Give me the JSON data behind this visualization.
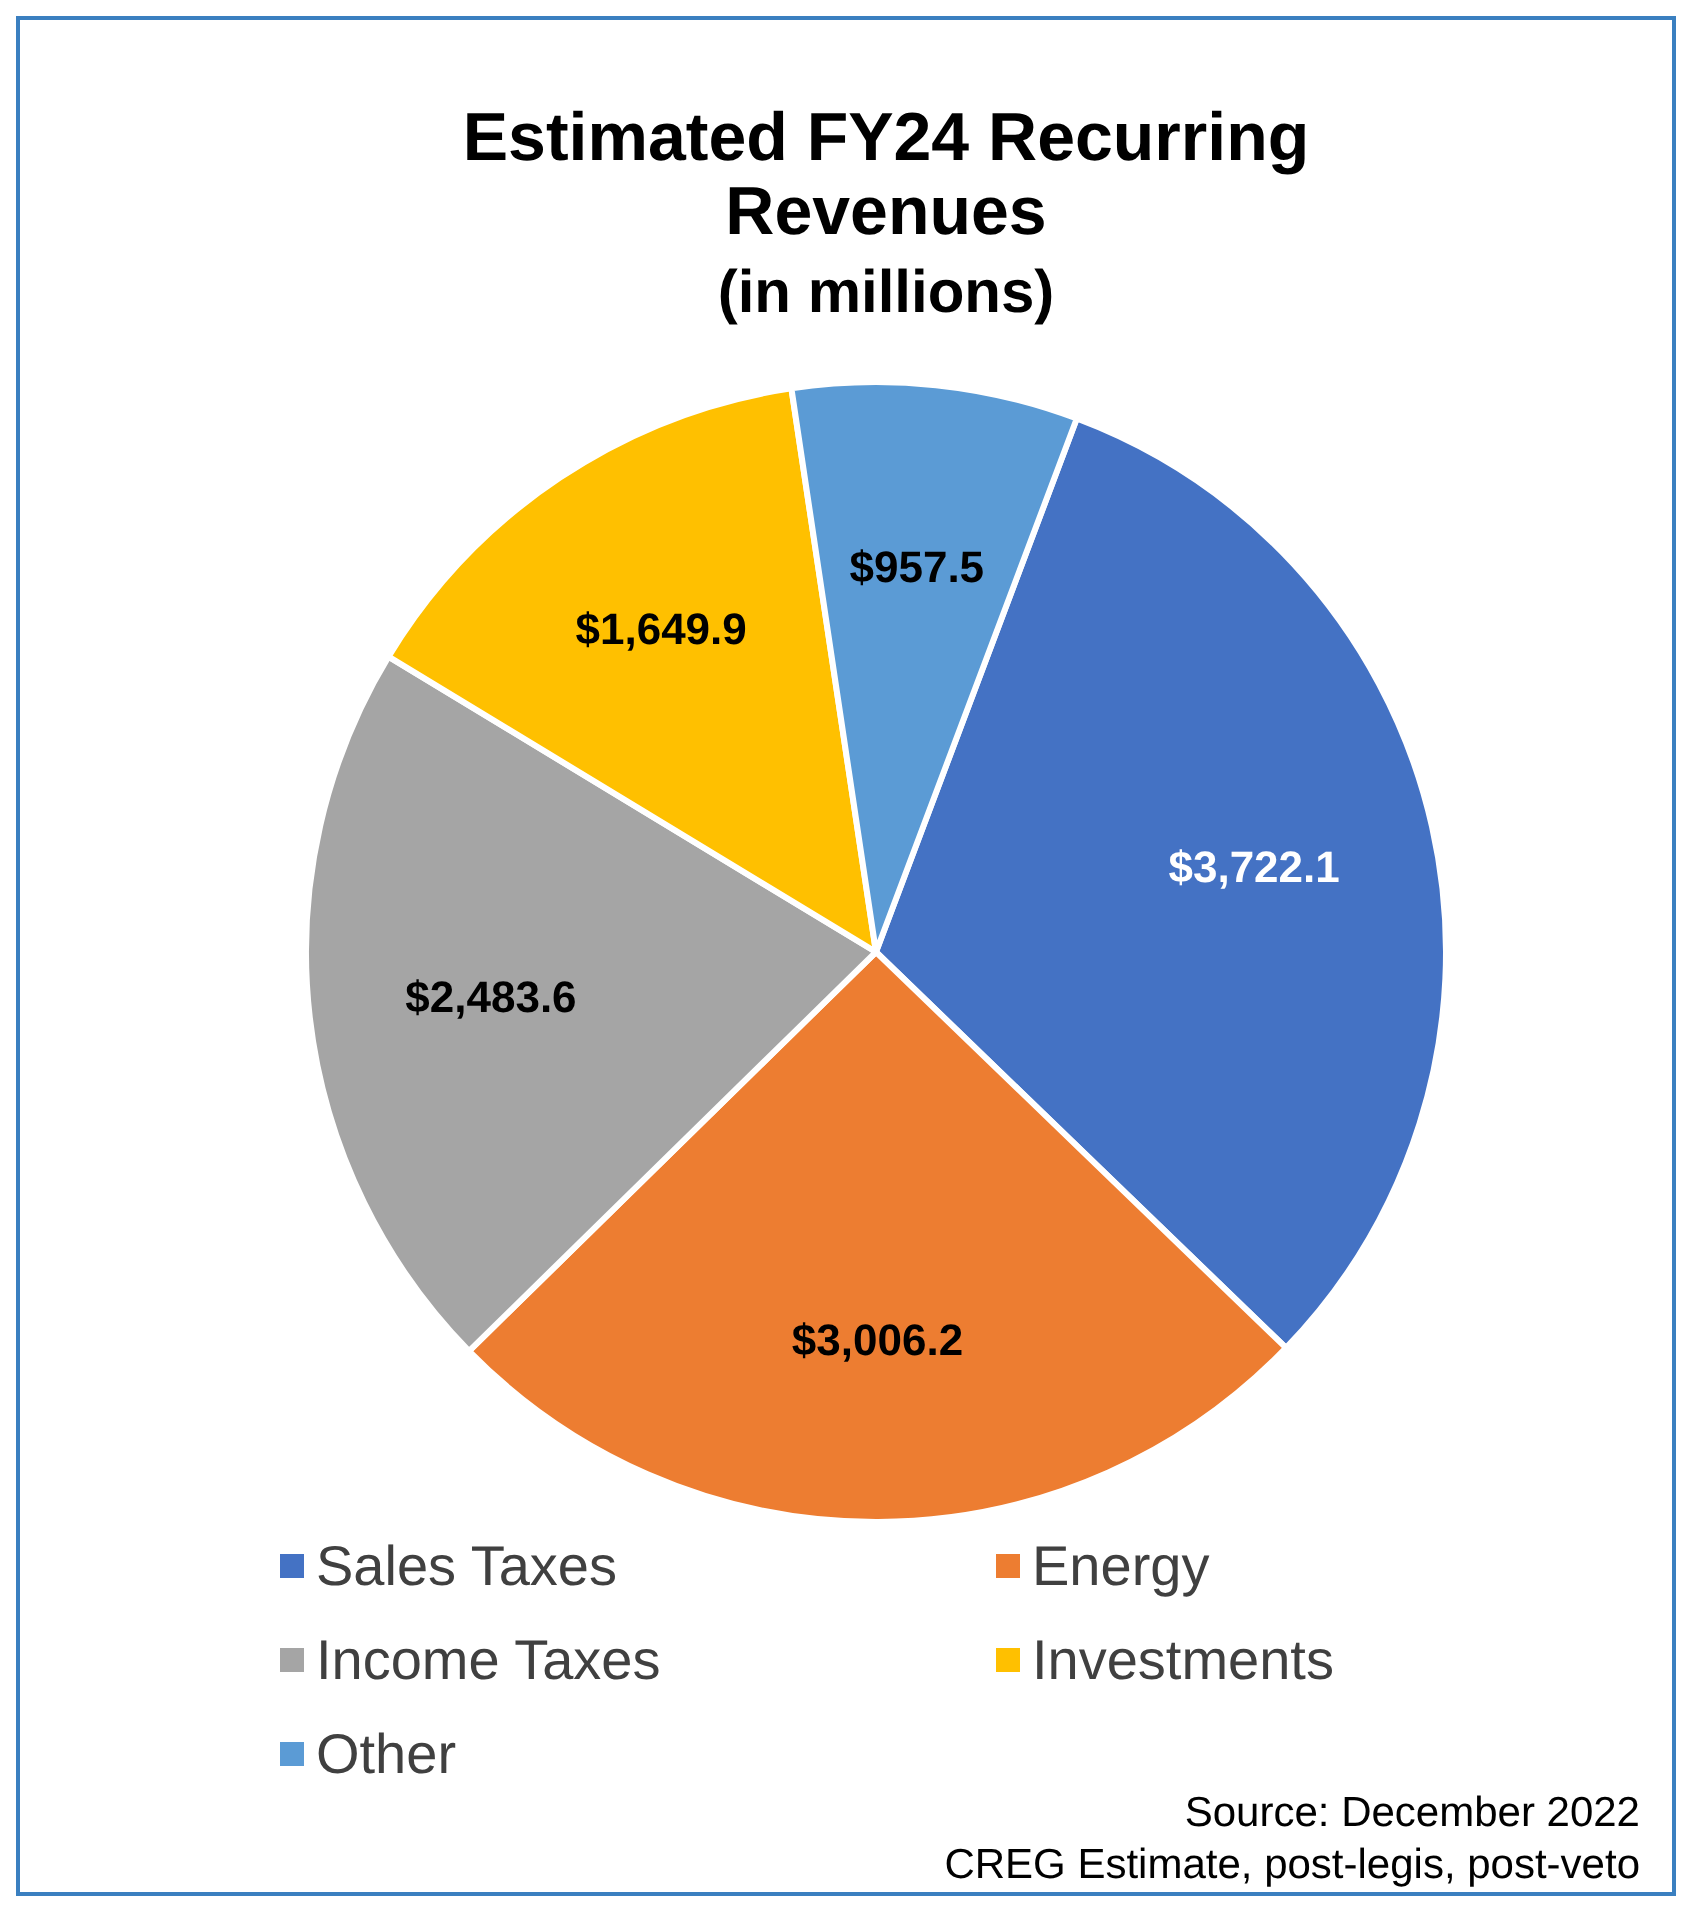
{
  "chart_data": {
    "type": "pie",
    "title": "Estimated FY24 Recurring Revenues",
    "subtitle": "(in millions)",
    "categories": [
      "Sales Taxes",
      "Energy",
      "Income Taxes",
      "Investments",
      "Other"
    ],
    "values": [
      3722.1,
      3006.2,
      2483.6,
      1649.9,
      957.5
    ],
    "colors": [
      "#4472c4",
      "#ed7d31",
      "#a5a5a5",
      "#ffc000",
      "#5b9bd5"
    ],
    "value_labels": [
      "$3,722.1",
      "$3,006.2",
      "$2,483.6",
      "$1,649.9",
      "$957.5"
    ],
    "legend": "bottom",
    "annotations": [
      "Source: December 2022",
      "CREG Estimate, post-legis, post-veto"
    ]
  }
}
